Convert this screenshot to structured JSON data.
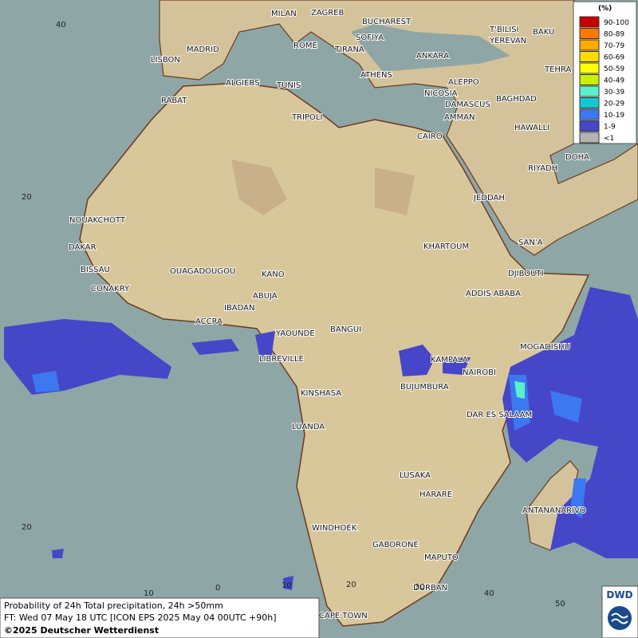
{
  "cities": [
    "MILAN",
    "ZAGREB",
    "BUCHAREST",
    "SOFIYA",
    "ROME",
    "TIRANA",
    "ANKARA",
    "T'BILISI",
    "YEREVAN",
    "BAKU",
    "TEHRA",
    "MADRID",
    "LISBON",
    "ATHENS",
    "ALGIERS",
    "TUNIS",
    "ALEPPO",
    "NICOSIA",
    "BAGHDAD",
    "DAMASCUS",
    "AMMAN",
    "RABAT",
    "TRIPOLI",
    "CAIRO",
    "HAWALLI",
    "DOHA",
    "RIYADH",
    "JEDDAH",
    "NOUAKCHOTT",
    "DAKAR",
    "KHARTOUM",
    "SAN'A",
    "BISSAU",
    "OUAGADOUGOU",
    "KANO",
    "DJIBOUTI",
    "CONAKRY",
    "ABUJA",
    "ADDIS ABABA",
    "IBADAN",
    "ACCRA",
    "YAOUNDE",
    "BANGUI",
    "MOGADISHU",
    "LIBREVILLE",
    "KAMPALA",
    "NAIROBI",
    "KINSHASA",
    "BUJUMBURA",
    "DAR ES SALAAM",
    "LUANDA",
    "LUSAKA",
    "HARARE",
    "ANTANANARIVO",
    "WINDHOEK",
    "GABORONE",
    "MAPUTO",
    "DURBAN",
    "CAPE TOWN"
  ],
  "grid_labels": [
    "40",
    "20",
    "20",
    "10",
    "0",
    "10",
    "20",
    "30",
    "40",
    "50"
  ],
  "legend": {
    "title": "(%)",
    "items": [
      {
        "label": "90-100",
        "color": "#c80000"
      },
      {
        "label": "80-89",
        "color": "#ff7800"
      },
      {
        "label": "70-79",
        "color": "#ffaa00"
      },
      {
        "label": "60-69",
        "color": "#ffdc00"
      },
      {
        "label": "50-59",
        "color": "#ffff00"
      },
      {
        "label": "40-49",
        "color": "#c8f000"
      },
      {
        "label": "30-39",
        "color": "#5af0c8"
      },
      {
        "label": "20-29",
        "color": "#14c8d2"
      },
      {
        "label": "10-19",
        "color": "#3c78f0"
      },
      {
        "label": "1-9",
        "color": "#4646c8"
      },
      {
        "label": "<1",
        "color": "#b4b4b4"
      }
    ]
  },
  "info": [
    "Probability of 24h Total precipitation, 24h >50mm",
    "FT: Wed 07 May 18 UTC [ICON EPS 2025 May 04 00UTC +90h]",
    "©2025 Deutscher Wetterdienst"
  ],
  "logo": "DWD"
}
